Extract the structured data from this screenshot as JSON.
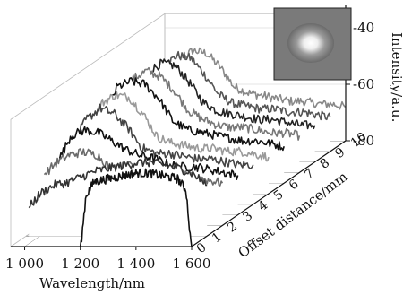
{
  "chart_data": {
    "type": "line",
    "title": "",
    "xlabel": "Wavelength/nm",
    "ylabel": "Intensity/a.u.",
    "zlabel": "Offset distance/mm",
    "xlim": [
      950,
      1600
    ],
    "x_ticks": [
      1000,
      1200,
      1400,
      1600
    ],
    "x_tick_labels": [
      "1 000",
      "1 200",
      "1 400",
      "1 600"
    ],
    "ylim": [
      -80,
      -35
    ],
    "y_ticks": [
      -40,
      -60,
      -80
    ],
    "z_ticks": [
      0,
      1,
      2,
      3,
      4,
      5,
      6,
      7,
      8,
      9,
      10
    ],
    "grid": true,
    "inset": "beam spot image",
    "series": [
      {
        "offset": 0,
        "color": "#111111",
        "x": [
          1200,
          1220,
          1250,
          1300,
          1350,
          1400,
          1450,
          1500,
          1550,
          1580,
          1600
        ],
        "values": [
          -82,
          -62,
          -57,
          -56,
          -55,
          -54,
          -54,
          -55,
          -56,
          -60,
          -82
        ]
      },
      {
        "offset": 1,
        "color": "#333333",
        "x": [
          960,
          1000,
          1050,
          1100,
          1150,
          1200,
          1250,
          1300,
          1350,
          1400,
          1450,
          1500,
          1550,
          1600
        ],
        "values": [
          -70,
          -65,
          -62,
          -61,
          -59,
          -57,
          -56,
          -55,
          -54,
          -54,
          -55,
          -56,
          -58,
          -62
        ]
      },
      {
        "offset": 2,
        "color": "#6b6b6b",
        "x": [
          960,
          1000,
          1050,
          1100,
          1150,
          1200,
          1250,
          1300,
          1350,
          1400,
          1450,
          1500,
          1550,
          1600
        ],
        "values": [
          -62,
          -58,
          -55,
          -54,
          -55,
          -60,
          -59,
          -58,
          -60,
          -61,
          -62,
          -63,
          -64,
          -65
        ]
      },
      {
        "offset": 3,
        "color": "#111111",
        "x": [
          960,
          1000,
          1050,
          1100,
          1150,
          1200,
          1250,
          1300,
          1350,
          1400,
          1450,
          1500,
          1550,
          1600
        ],
        "values": [
          -60,
          -52,
          -50,
          -51,
          -54,
          -57,
          -59,
          -60,
          -62,
          -63,
          -63,
          -64,
          -65,
          -66
        ]
      },
      {
        "offset": 4,
        "color": "#444444",
        "x": [
          960,
          1000,
          1050,
          1100,
          1150,
          1200,
          1250,
          1300,
          1350,
          1400,
          1450,
          1500,
          1550,
          1600
        ],
        "values": [
          -57,
          -50,
          -46,
          -48,
          -53,
          -60,
          -62,
          -62,
          -63,
          -64,
          -64,
          -65,
          -66,
          -66
        ]
      },
      {
        "offset": 5,
        "color": "#999999",
        "x": [
          960,
          1000,
          1050,
          1100,
          1150,
          1200,
          1250,
          1300,
          1350,
          1400,
          1450,
          1500,
          1550,
          1600
        ],
        "values": [
          -56,
          -48,
          -45,
          -46,
          -52,
          -60,
          -62,
          -63,
          -64,
          -64,
          -65,
          -65,
          -66,
          -67
        ]
      },
      {
        "offset": 6,
        "color": "#111111",
        "x": [
          960,
          1000,
          1050,
          1100,
          1150,
          1200,
          1250,
          1300,
          1350,
          1400,
          1450,
          1500,
          1550,
          1600
        ],
        "values": [
          -55,
          -46,
          -44,
          -45,
          -50,
          -58,
          -61,
          -62,
          -63,
          -64,
          -65,
          -65,
          -66,
          -67
        ]
      },
      {
        "offset": 7,
        "color": "#777777",
        "x": [
          960,
          1000,
          1050,
          1100,
          1150,
          1200,
          1250,
          1300,
          1350,
          1400,
          1450,
          1500,
          1550,
          1600
        ],
        "values": [
          -56,
          -47,
          -44,
          -46,
          -51,
          -58,
          -61,
          -63,
          -64,
          -64,
          -65,
          -66,
          -66,
          -67
        ]
      },
      {
        "offset": 8,
        "color": "#222222",
        "x": [
          960,
          1000,
          1050,
          1100,
          1150,
          1200,
          1250,
          1300,
          1350,
          1400,
          1450,
          1500,
          1550,
          1600
        ],
        "values": [
          -57,
          -48,
          -45,
          -46,
          -52,
          -59,
          -62,
          -63,
          -64,
          -65,
          -65,
          -66,
          -67,
          -67
        ]
      },
      {
        "offset": 9,
        "color": "#555555",
        "x": [
          960,
          1000,
          1050,
          1100,
          1150,
          1200,
          1250,
          1300,
          1350,
          1400,
          1450,
          1500,
          1550,
          1600
        ],
        "values": [
          -58,
          -50,
          -46,
          -47,
          -53,
          -60,
          -63,
          -64,
          -65,
          -65,
          -66,
          -66,
          -67,
          -68
        ]
      },
      {
        "offset": 10,
        "color": "#888888",
        "x": [
          960,
          1000,
          1050,
          1100,
          1150,
          1200,
          1250,
          1300,
          1350,
          1400,
          1450,
          1500,
          1550,
          1600
        ],
        "values": [
          -59,
          -52,
          -48,
          -49,
          -54,
          -61,
          -63,
          -64,
          -65,
          -66,
          -66,
          -67,
          -67,
          -68
        ]
      }
    ]
  }
}
